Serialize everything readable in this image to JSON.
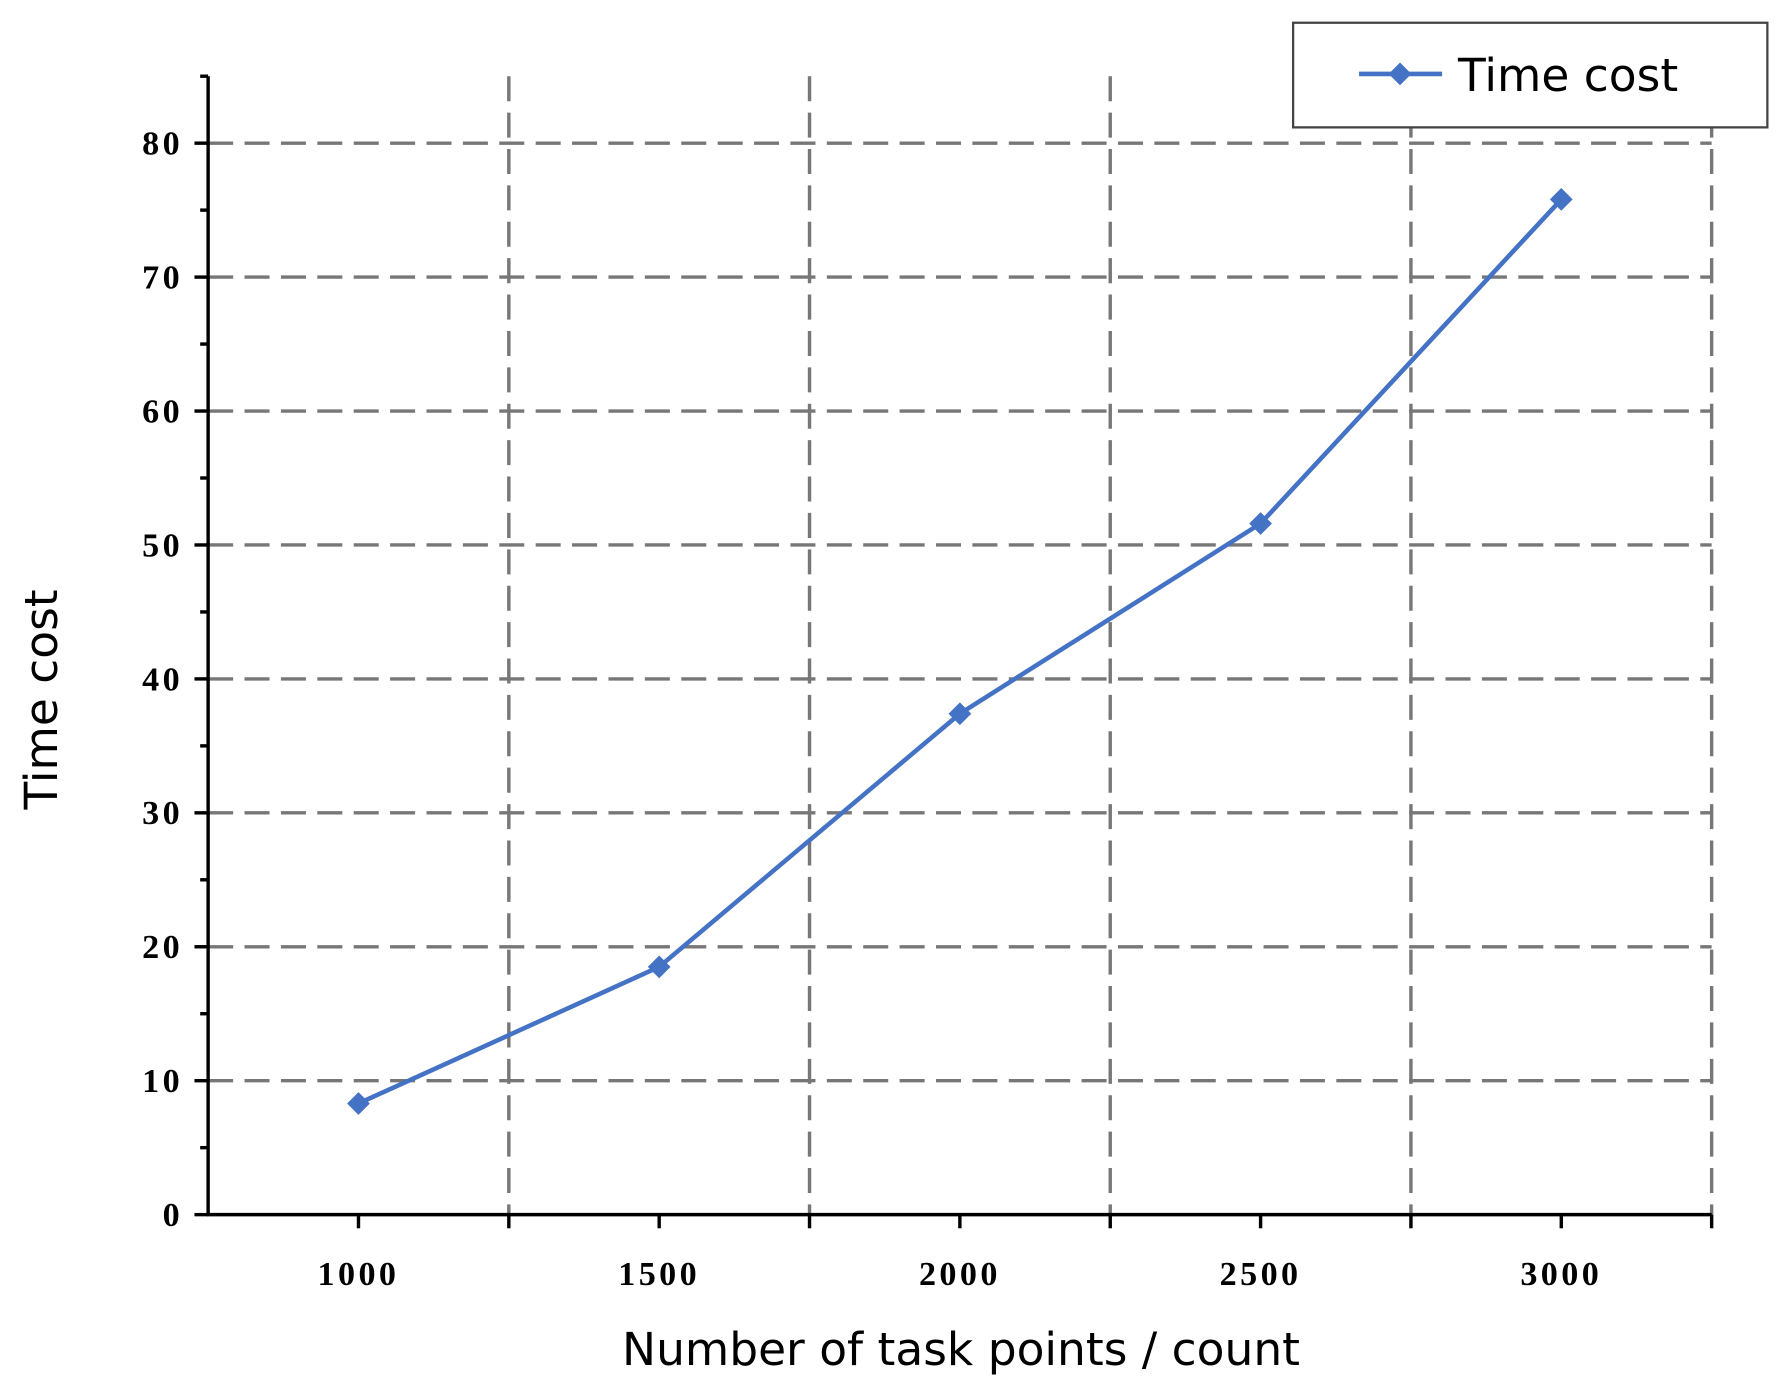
{
  "chart_data": {
    "type": "line",
    "x_label": "Number of task points / count",
    "y_label": "Time cost",
    "x": [
      1000,
      1500,
      2000,
      2500,
      3000
    ],
    "series": [
      {
        "name": "Time cost",
        "color": "#4472c4",
        "values": [
          8.3,
          18.5,
          37.4,
          51.6,
          75.8
        ]
      }
    ],
    "xlim": [
      750,
      3250
    ],
    "xticks": [
      1000,
      1500,
      2000,
      2500,
      3000
    ],
    "xgrid": [
      1250,
      1750,
      2250,
      2750,
      3250
    ],
    "ylim": [
      0,
      85
    ],
    "yticks": [
      0,
      10,
      20,
      30,
      40,
      50,
      60,
      70,
      80
    ],
    "yminorticks": [
      5,
      15,
      25,
      35,
      45,
      55,
      65,
      75,
      85
    ],
    "grid": true,
    "legend": "upper right"
  }
}
